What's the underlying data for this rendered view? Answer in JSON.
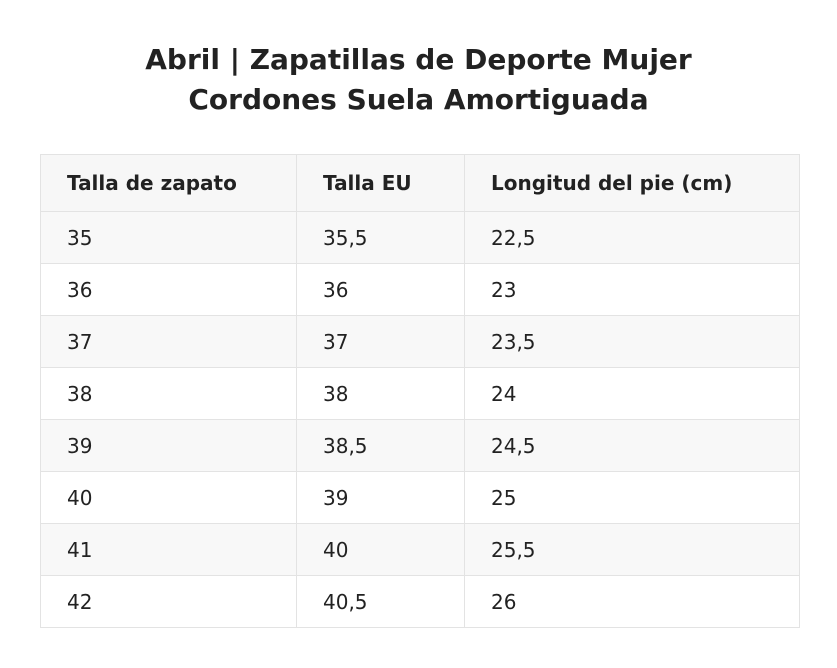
{
  "title": {
    "line1": "Abril | Zapatillas de Deporte Mujer",
    "line2": "Cordones Suela Amortiguada"
  },
  "table": {
    "headers": [
      "Talla de zapato",
      "Talla EU",
      "Longitud del pie (cm)"
    ],
    "rows": [
      [
        "35",
        "35,5",
        "22,5"
      ],
      [
        "36",
        "36",
        "23"
      ],
      [
        "37",
        "37",
        "23,5"
      ],
      [
        "38",
        "38",
        "24"
      ],
      [
        "39",
        "38,5",
        "24,5"
      ],
      [
        "40",
        "39",
        "25"
      ],
      [
        "41",
        "40",
        "25,5"
      ],
      [
        "42",
        "40,5",
        "26"
      ]
    ]
  },
  "colors": {
    "text": "#222222",
    "border": "#e3e3e3",
    "header_bg": "#f7f7f7",
    "stripe_bg": "#f8f8f8"
  }
}
